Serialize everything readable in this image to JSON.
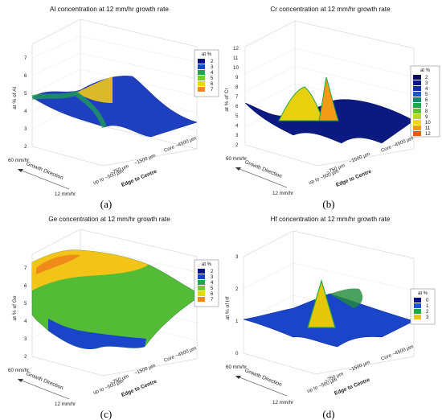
{
  "panels": [
    {
      "title": "Al concentration at 12 mm/hr growth rate",
      "label": "(a)",
      "zlabel": "at % of Al",
      "zticks": [
        "2",
        "3",
        "4",
        "5",
        "6",
        "7"
      ],
      "legend_title": "at %",
      "legend": [
        {
          "label": "2",
          "color": "#0a0f8c"
        },
        {
          "label": "3",
          "color": "#1b45c9"
        },
        {
          "label": "4",
          "color": "#1fa84a"
        },
        {
          "label": "5",
          "color": "#72cc2f"
        },
        {
          "label": "6",
          "color": "#e6d90a"
        },
        {
          "label": "7",
          "color": "#f08a1a"
        }
      ]
    },
    {
      "title": "Cr concentration at 12 mm/hr growth rate",
      "label": "(b)",
      "zlabel": "at % of Cr",
      "zticks": [
        "2",
        "3",
        "4",
        "5",
        "6",
        "7",
        "8",
        "9",
        "10",
        "11",
        "12"
      ],
      "legend_title": "at %",
      "legend": [
        {
          "label": "2",
          "color": "#070e5e"
        },
        {
          "label": "3",
          "color": "#0b1a80"
        },
        {
          "label": "4",
          "color": "#1230a8"
        },
        {
          "label": "5",
          "color": "#1b55d0"
        },
        {
          "label": "6",
          "color": "#138a6e"
        },
        {
          "label": "7",
          "color": "#1ea84a"
        },
        {
          "label": "8",
          "color": "#62c232"
        },
        {
          "label": "9",
          "color": "#b7d91c"
        },
        {
          "label": "10",
          "color": "#f0d80c"
        },
        {
          "label": "11",
          "color": "#f39a16"
        },
        {
          "label": "12",
          "color": "#ee5414"
        }
      ]
    },
    {
      "title": "Ge concentration at 12 mm/hr growth rate",
      "label": "(c)",
      "zlabel": "at % of Ge",
      "zticks": [
        "2",
        "3",
        "4",
        "5",
        "6",
        "7"
      ],
      "legend_title": "at %",
      "legend": [
        {
          "label": "2",
          "color": "#0a0f8c"
        },
        {
          "label": "3",
          "color": "#1b45c9"
        },
        {
          "label": "4",
          "color": "#1fa84a"
        },
        {
          "label": "5",
          "color": "#72cc2f"
        },
        {
          "label": "6",
          "color": "#e6d90a"
        },
        {
          "label": "7",
          "color": "#f08a1a"
        }
      ]
    },
    {
      "title": "Hf concentration at 12 mm/hr growth rate",
      "label": "(d)",
      "zlabel": "at % of Hf",
      "zticks": [
        "0",
        "1",
        "2",
        "3"
      ],
      "legend_title": "at %",
      "legend": [
        {
          "label": "0",
          "color": "#0a0f8c"
        },
        {
          "label": "1",
          "color": "#1b55d0"
        },
        {
          "label": "2",
          "color": "#1fa84a"
        },
        {
          "label": "3",
          "color": "#e6c80a"
        }
      ]
    }
  ],
  "axes": {
    "growth_high": "60 mm/hr",
    "growth_low": "12 mm/hr",
    "growth_direction": "Growth Direction",
    "edge_ticks": [
      "up to ~500 μm",
      "~750 μm",
      "~1500 μm",
      "Core ~4500 μm"
    ],
    "edge_label": "Edge to Centre"
  },
  "chart_data": [
    {
      "type": "surface",
      "title": "Al concentration at 12 mm/hr growth rate",
      "zlabel": "at % of Al",
      "zlim": [
        2,
        7
      ],
      "x_label": "Edge to Centre",
      "x": [
        "up to ~500 μm",
        "~750 μm",
        "~1500 μm",
        "Core ~4500 μm"
      ],
      "y": [
        "12 mm/hr",
        "60 mm/hr"
      ],
      "z": [
        [
          4.8,
          5.5,
          5.0,
          3.2
        ],
        [
          4.6,
          4.8,
          5.5,
          3.6
        ]
      ],
      "colorbar_ticks": [
        2,
        3,
        4,
        5,
        6,
        7
      ]
    },
    {
      "type": "surface",
      "title": "Cr concentration at 12 mm/hr growth rate",
      "zlabel": "at % of Cr",
      "zlim": [
        2,
        12
      ],
      "x_label": "Edge to Centre",
      "x": [
        "up to ~500 μm",
        "~750 μm",
        "~1500 μm",
        "Core ~4500 μm"
      ],
      "y": [
        "12 mm/hr",
        "60 mm/hr"
      ],
      "z": [
        [
          3.5,
          9.5,
          3.0,
          4.5
        ],
        [
          6.0,
          5.0,
          8.5,
          5.5
        ]
      ],
      "colorbar_ticks": [
        2,
        3,
        4,
        5,
        6,
        7,
        8,
        9,
        10,
        11,
        12
      ]
    },
    {
      "type": "surface",
      "title": "Ge concentration at 12 mm/hr growth rate",
      "zlabel": "at % of Ge",
      "zlim": [
        2,
        7
      ],
      "x_label": "Edge to Centre",
      "x": [
        "up to ~500 μm",
        "~750 μm",
        "~1500 μm",
        "Core ~4500 μm"
      ],
      "y": [
        "12 mm/hr",
        "60 mm/hr"
      ],
      "z": [
        [
          3.0,
          3.8,
          4.6,
          5.0
        ],
        [
          6.8,
          6.5,
          6.2,
          5.5
        ]
      ],
      "colorbar_ticks": [
        2,
        3,
        4,
        5,
        6,
        7
      ]
    },
    {
      "type": "surface",
      "title": "Hf concentration at 12 mm/hr growth rate",
      "zlabel": "at % of Hf",
      "zlim": [
        0,
        3
      ],
      "x_label": "Edge to Centre",
      "x": [
        "up to ~500 μm",
        "~750 μm",
        "~1500 μm",
        "Core ~4500 μm"
      ],
      "y": [
        "12 mm/hr",
        "60 mm/hr"
      ],
      "z": [
        [
          0.6,
          2.4,
          1.3,
          0.7
        ],
        [
          0.8,
          1.5,
          1.0,
          0.9
        ]
      ],
      "colorbar_ticks": [
        0,
        1,
        2,
        3
      ]
    }
  ]
}
